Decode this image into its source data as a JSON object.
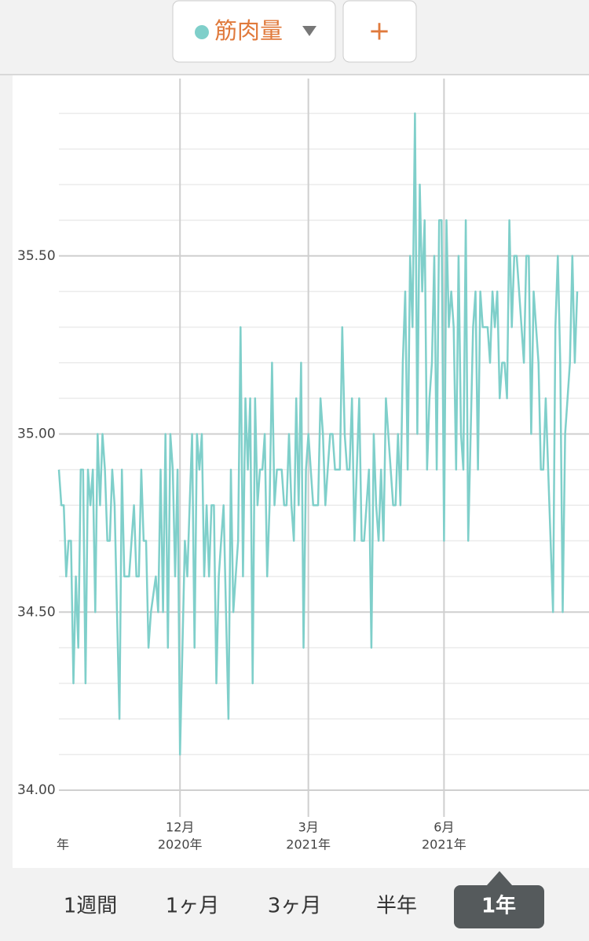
{
  "header": {
    "metric": "筋肉量",
    "add_button": "+"
  },
  "chart_data": {
    "type": "line",
    "color": "#7fcfca",
    "values": [
      34.9,
      34.8,
      34.8,
      34.6,
      34.7,
      34.7,
      34.3,
      34.6,
      34.4,
      34.9,
      34.9,
      34.3,
      34.9,
      34.8,
      34.9,
      34.5,
      35.0,
      34.8,
      35.0,
      34.9,
      34.7,
      34.7,
      34.9,
      34.8,
      34.5,
      34.2,
      34.9,
      34.6,
      34.6,
      34.6,
      34.7,
      34.8,
      34.6,
      34.6,
      34.9,
      34.7,
      34.7,
      34.4,
      34.5,
      34.55,
      34.6,
      34.5,
      34.9,
      34.5,
      35.0,
      34.4,
      35.0,
      34.9,
      34.6,
      34.9,
      34.1,
      34.4,
      34.7,
      34.6,
      34.8,
      35.0,
      34.4,
      35.0,
      34.9,
      35.0,
      34.6,
      34.8,
      34.6,
      34.8,
      34.8,
      34.3,
      34.6,
      34.7,
      34.8,
      34.5,
      34.2,
      34.9,
      34.5,
      34.6,
      34.7,
      35.3,
      34.6,
      35.1,
      34.9,
      35.1,
      34.3,
      35.1,
      34.8,
      34.9,
      34.9,
      35.0,
      34.6,
      34.8,
      35.2,
      34.8,
      34.9,
      34.9,
      34.9,
      34.8,
      34.8,
      35.0,
      34.8,
      34.7,
      35.1,
      34.8,
      35.2,
      34.4,
      34.9,
      35.0,
      34.9,
      34.8,
      34.8,
      34.8,
      35.1,
      35.0,
      34.8,
      34.9,
      35.0,
      35.0,
      34.9,
      34.9,
      34.9,
      35.3,
      35.0,
      34.9,
      34.9,
      35.1,
      34.7,
      34.9,
      35.1,
      34.7,
      34.7,
      34.8,
      34.9,
      34.4,
      35.0,
      34.8,
      34.7,
      34.9,
      34.7,
      35.1,
      35.0,
      34.9,
      34.8,
      34.8,
      35.0,
      34.8,
      35.2,
      35.4,
      34.9,
      35.5,
      35.3,
      35.9,
      35.0,
      35.7,
      35.4,
      35.6,
      34.9,
      35.1,
      35.2,
      35.5,
      34.9,
      35.6,
      35.6,
      34.7,
      35.6,
      35.3,
      35.4,
      35.3,
      34.9,
      35.5,
      35.0,
      34.9,
      35.6,
      34.7,
      35.0,
      35.3,
      35.4,
      34.9,
      35.4,
      35.3,
      35.3,
      35.3,
      35.2,
      35.4,
      35.3,
      35.4,
      35.1,
      35.2,
      35.2,
      35.1,
      35.6,
      35.3,
      35.5,
      35.5,
      35.4,
      35.3,
      35.2,
      35.5,
      35.5,
      35.0,
      35.4,
      35.3,
      35.2,
      34.9,
      34.9,
      35.1,
      34.9,
      34.7,
      34.5,
      35.3,
      35.5,
      35.2,
      34.5,
      35.0,
      35.1,
      35.2,
      35.5,
      35.2,
      35.4
    ],
    "xlim": [
      0,
      214
    ],
    "xticks": [
      {
        "value": 50,
        "label": [
          "12月",
          "2020年"
        ]
      },
      {
        "value": 103,
        "label": [
          "3月",
          "2021年"
        ]
      },
      {
        "value": 159,
        "label": [
          "6月",
          "2021年"
        ]
      }
    ],
    "x_cut_label": "年",
    "ylim": [
      34.0,
      36.0
    ],
    "yticks": [
      {
        "value": 34.0,
        "label": "34.00"
      },
      {
        "value": 34.5,
        "label": "34.50"
      },
      {
        "value": 35.0,
        "label": "35.00"
      },
      {
        "value": 35.5,
        "label": "35.50"
      }
    ],
    "minor_yticks": [
      34.1,
      34.2,
      34.3,
      34.4,
      34.6,
      34.7,
      34.8,
      34.9,
      35.1,
      35.2,
      35.3,
      35.4,
      35.6,
      35.7,
      35.8,
      35.9
    ],
    "grid": true
  },
  "tabs": {
    "items": [
      "1週間",
      "1ヶ月",
      "3ヶ月",
      "半年",
      "1年"
    ],
    "selected": 4
  }
}
